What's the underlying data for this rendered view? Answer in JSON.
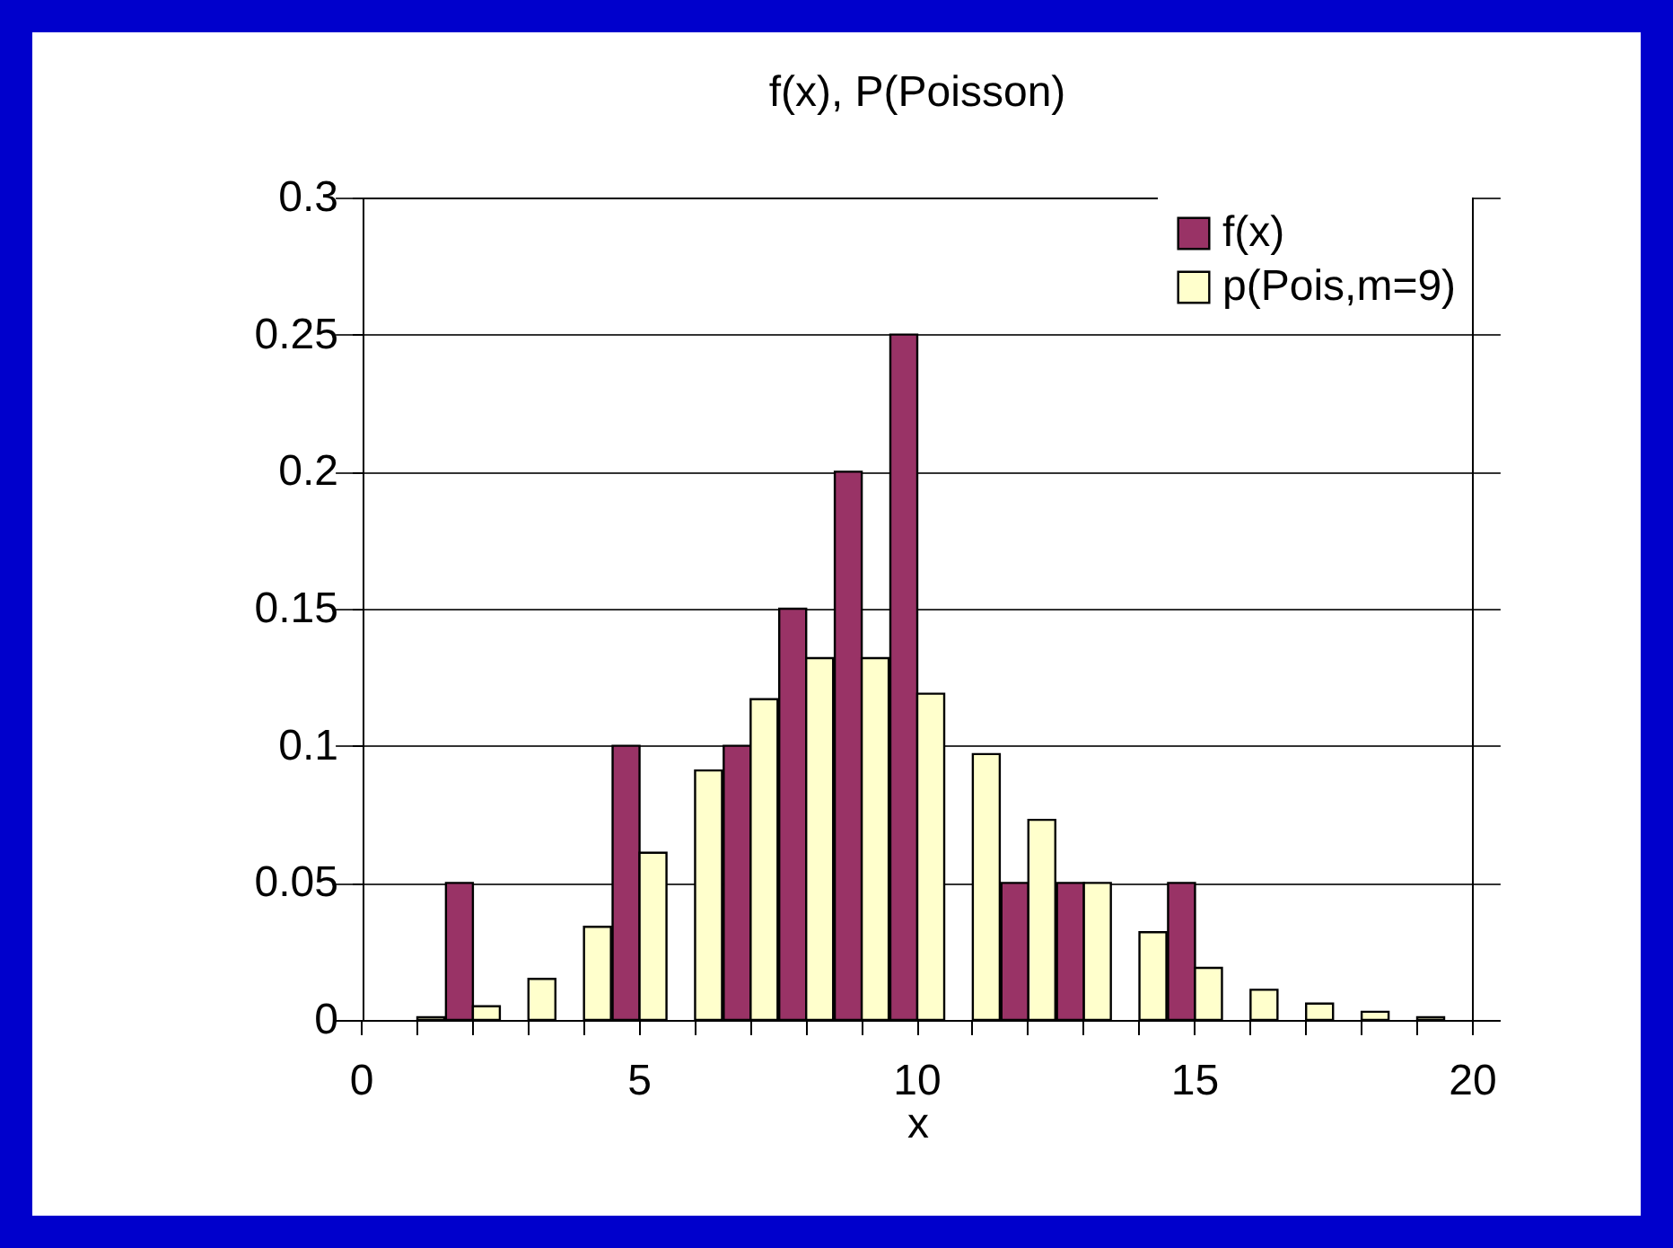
{
  "chart_data": {
    "type": "bar",
    "title": "f(x), P(Poisson)",
    "xlabel": "x",
    "categories": [
      "0",
      null,
      null,
      null,
      null,
      "5",
      null,
      null,
      null,
      null,
      "10",
      null,
      null,
      null,
      null,
      "15",
      null,
      null,
      null,
      null,
      "20"
    ],
    "series": [
      {
        "name": "f(x)",
        "color": "#993366",
        "values": [
          0,
          0,
          0.05,
          0,
          0,
          0.1,
          0,
          0.1,
          0.15,
          0.2,
          0.25,
          0,
          0.05,
          0.05,
          0,
          0.05,
          0,
          0,
          0,
          0,
          0
        ]
      },
      {
        "name": "p(Pois,m=9)",
        "color": "#ffffcc",
        "values": [
          0,
          0.001,
          0.005,
          0.015,
          0.034,
          0.061,
          0.091,
          0.117,
          0.132,
          0.132,
          0.119,
          0.097,
          0.073,
          0.05,
          0.032,
          0.019,
          0.011,
          0.006,
          0.003,
          0.001,
          0
        ]
      }
    ],
    "ylim": [
      0,
      0.3
    ],
    "yticks": [
      0,
      0.05,
      0.1,
      0.15,
      0.2,
      0.25,
      0.3
    ],
    "grid": "y",
    "legend": "top right"
  }
}
